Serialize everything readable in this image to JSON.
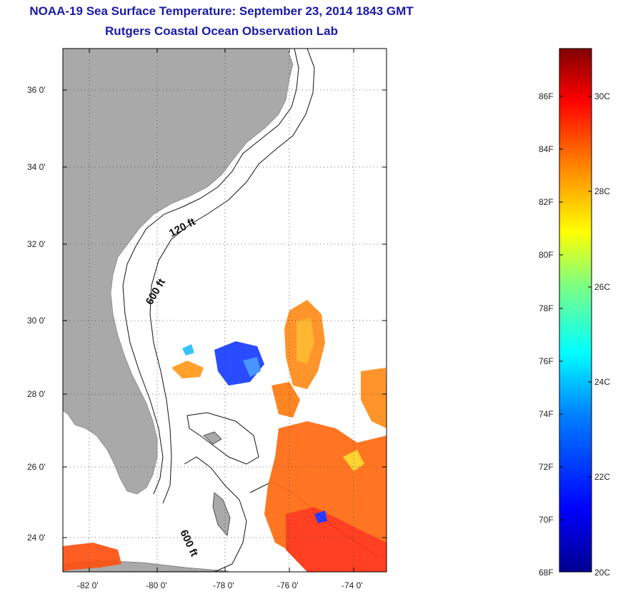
{
  "title": {
    "line1": "NOAA-19 Sea Surface Temperature:  September 23, 2014 1843 GMT",
    "line2": "Rutgers Coastal Ocean Observation Lab"
  },
  "map": {
    "lat_labels": [
      "36 0'",
      "34 0'",
      "32 0'",
      "30 0'",
      "28 0'",
      "26 0'",
      "24 0'"
    ],
    "lon_labels": [
      "-82 0'",
      "-80 0'",
      "-78 0'",
      "-76 0'",
      "-74 0'"
    ],
    "lat_values": [
      36,
      34,
      32,
      30,
      28,
      26,
      24
    ],
    "lon_values": [
      -82,
      -80,
      -78,
      -76,
      -74
    ],
    "lat_range": [
      23,
      37.1
    ],
    "lon_range": [
      -83,
      -73
    ],
    "contour_labels": [
      "120 ft",
      "600 ft",
      "600 ft"
    ],
    "land_color": "#a9a9a9",
    "ocean_color": "#ffffff"
  },
  "colorbar": {
    "f_labels": [
      "86F",
      "84F",
      "82F",
      "80F",
      "78F",
      "76F",
      "74F",
      "72F",
      "70F",
      "68F"
    ],
    "c_labels": [
      "30C",
      "28C",
      "26C",
      "24C",
      "22C",
      "20C"
    ],
    "f_values": [
      86,
      84,
      82,
      80,
      78,
      76,
      74,
      72,
      70,
      68
    ],
    "c_values": [
      30,
      28,
      26,
      24,
      22,
      20
    ],
    "colors": [
      "#00008f",
      "#0000ff",
      "#0080ff",
      "#00ffff",
      "#80ff80",
      "#ffff00",
      "#ff8000",
      "#ff0000",
      "#800000"
    ]
  }
}
